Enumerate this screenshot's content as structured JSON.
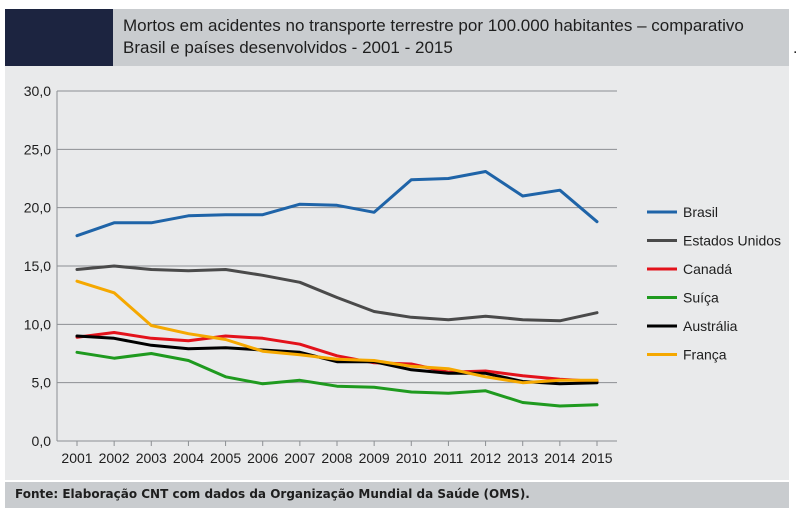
{
  "title": "Mortos em acidentes no transporte terrestre por 100.000 habitantes – comparativo Brasil e países desenvolvidos - 2001 - 2015",
  "source": "Fonte: Elaboração CNT com dados da Organização Mundial da Saúde (OMS).",
  "chart_data": {
    "type": "line",
    "title": "Mortos em acidentes no transporte terrestre por 100.000 habitantes – comparativo Brasil e países desenvolvidos - 2001 - 2015",
    "xlabel": "",
    "ylabel": "",
    "x": [
      "2001",
      "2002",
      "2003",
      "2004",
      "2005",
      "2006",
      "2007",
      "2008",
      "2009",
      "2010",
      "2011",
      "2012",
      "2013",
      "2014",
      "2015"
    ],
    "ylim": [
      0,
      30
    ],
    "yticks": [
      "0,0",
      "5,0",
      "10,0",
      "15,0",
      "20,0",
      "25,0",
      "30,0"
    ],
    "grid": true,
    "legend": "right",
    "series": [
      {
        "name": "Brasil",
        "color": "#1f64a8",
        "values": [
          17.6,
          18.7,
          18.7,
          19.3,
          19.4,
          19.4,
          20.3,
          20.2,
          19.6,
          22.4,
          22.5,
          23.1,
          21.0,
          21.5,
          18.8
        ]
      },
      {
        "name": "Estados Unidos",
        "color": "#4a4a4a",
        "values": [
          14.7,
          15.0,
          14.7,
          14.6,
          14.7,
          14.2,
          13.6,
          12.3,
          11.1,
          10.6,
          10.4,
          10.7,
          10.4,
          10.3,
          11.0
        ]
      },
      {
        "name": "Canadá",
        "color": "#e3121b",
        "values": [
          8.9,
          9.3,
          8.8,
          8.6,
          9.0,
          8.8,
          8.3,
          7.3,
          6.7,
          6.6,
          5.9,
          6.0,
          5.6,
          5.3,
          5.1
        ]
      },
      {
        "name": "Suíça",
        "color": "#1f9a1f",
        "values": [
          7.6,
          7.1,
          7.5,
          6.9,
          5.5,
          4.9,
          5.2,
          4.7,
          4.6,
          4.2,
          4.1,
          4.3,
          3.3,
          3.0,
          3.1
        ]
      },
      {
        "name": "Austrália",
        "color": "#000000",
        "values": [
          9.0,
          8.8,
          8.2,
          7.9,
          8.0,
          7.8,
          7.6,
          6.8,
          6.8,
          6.1,
          5.8,
          5.8,
          5.1,
          4.9,
          5.0
        ]
      },
      {
        "name": "França",
        "color": "#f5a800",
        "values": [
          13.7,
          12.7,
          9.9,
          9.2,
          8.7,
          7.7,
          7.4,
          7.0,
          6.9,
          6.4,
          6.2,
          5.5,
          5.0,
          5.2,
          5.2
        ]
      }
    ]
  }
}
